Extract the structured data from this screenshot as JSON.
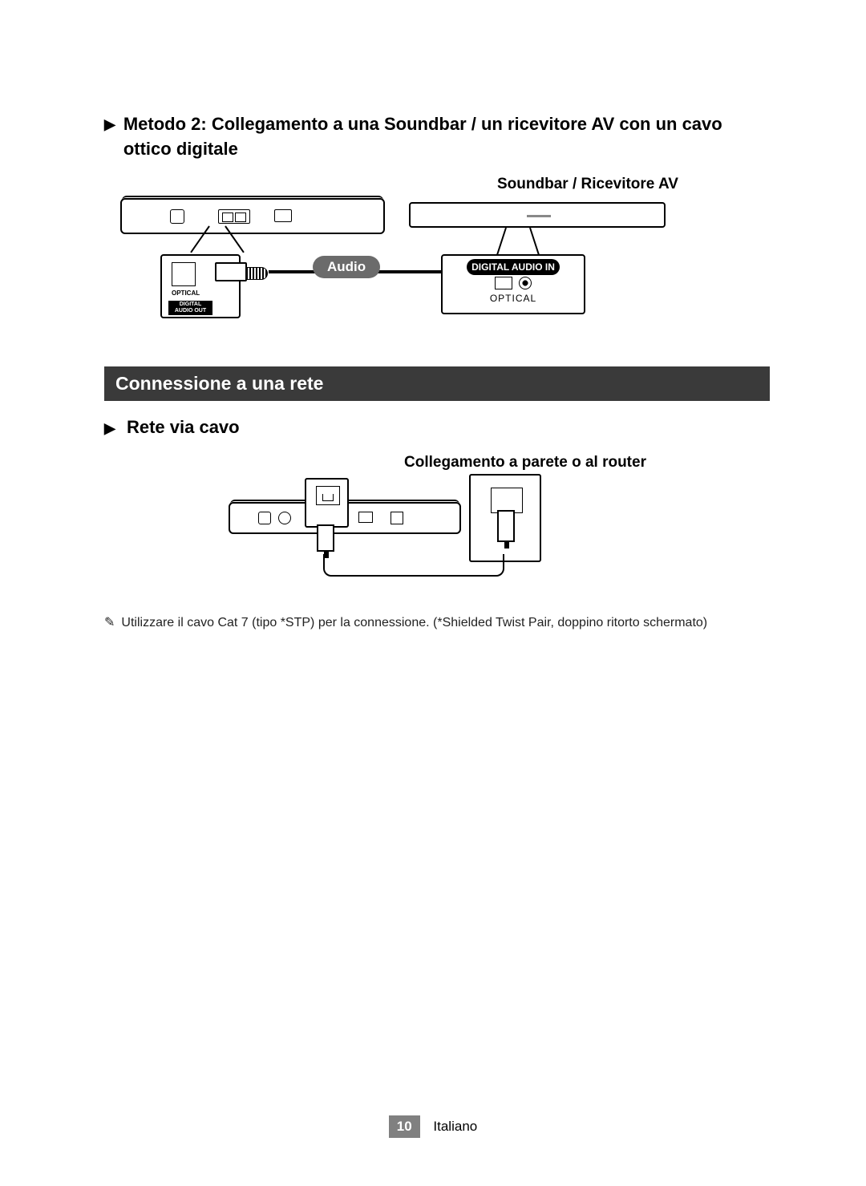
{
  "method_heading": "Metodo 2: Collegamento a una Soundbar / un ricevitore AV con un cavo ottico digitale",
  "diagram1": {
    "soundbar_label": "Soundbar / Ricevitore AV",
    "audio_pill": "Audio",
    "optical_label": "OPTICAL",
    "digital_out_label": "DIGITAL\nAUDIO OUT",
    "digital_in_header": "DIGITAL AUDIO IN",
    "optical_in_label": "OPTICAL"
  },
  "section_bar": "Connessione a una rete",
  "sub_heading": "Rete via cavo",
  "router_label": "Collegamento a parete o al router",
  "note_text": "Utilizzare il cavo Cat 7 (tipo *STP) per la connessione. (*Shielded Twist Pair, doppino ritorto schermato)",
  "footer": {
    "page": "10",
    "lang": "Italiano"
  },
  "colors": {
    "section_bg": "#3a3a3a",
    "pill_bg": "#6b6b6b",
    "footer_bg": "#808080",
    "text": "#000000",
    "page_bg": "#ffffff"
  },
  "triangle_glyph": "▶",
  "note_bullet_glyph": "✎"
}
